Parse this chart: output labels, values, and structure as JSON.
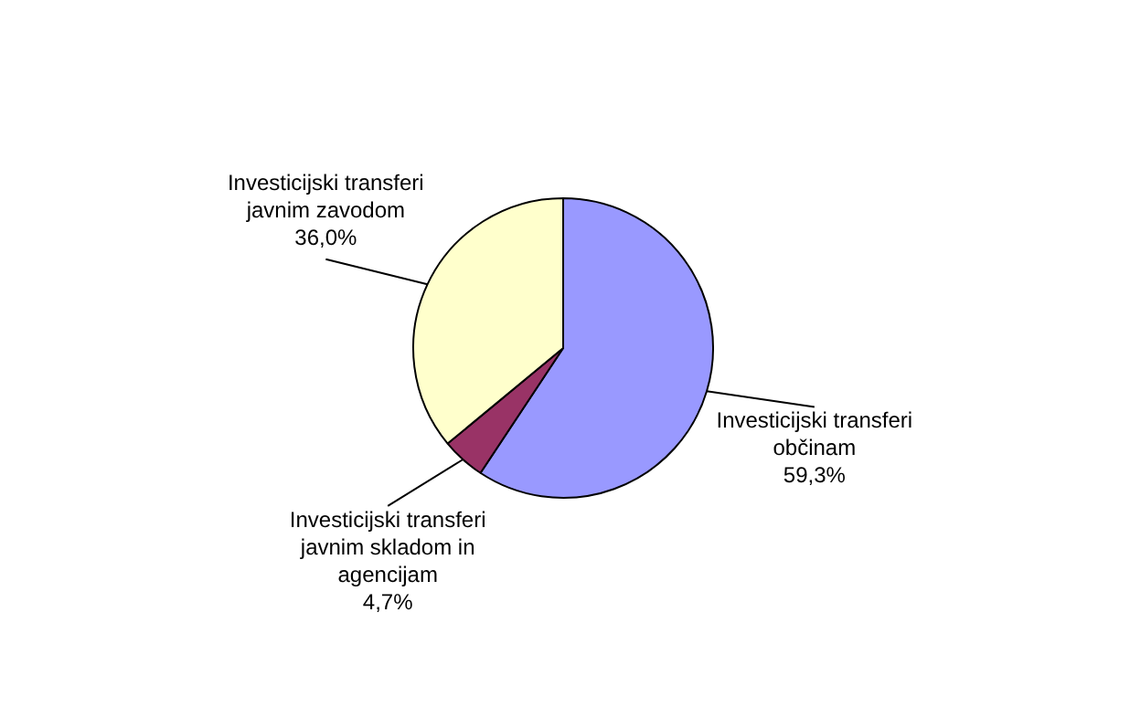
{
  "chart_data": {
    "type": "pie",
    "categories": [
      "Investicijski transferi občinam",
      "Investicijski transferi javnim skladom in agencijam",
      "Investicijski transferi javnim zavodom"
    ],
    "values": [
      59.3,
      4.7,
      36.0
    ],
    "colors": [
      "#9999ff",
      "#993366",
      "#ffffcc"
    ],
    "value_labels": [
      "59,3%",
      "4,7%",
      "36,0%"
    ],
    "legend": false
  }
}
